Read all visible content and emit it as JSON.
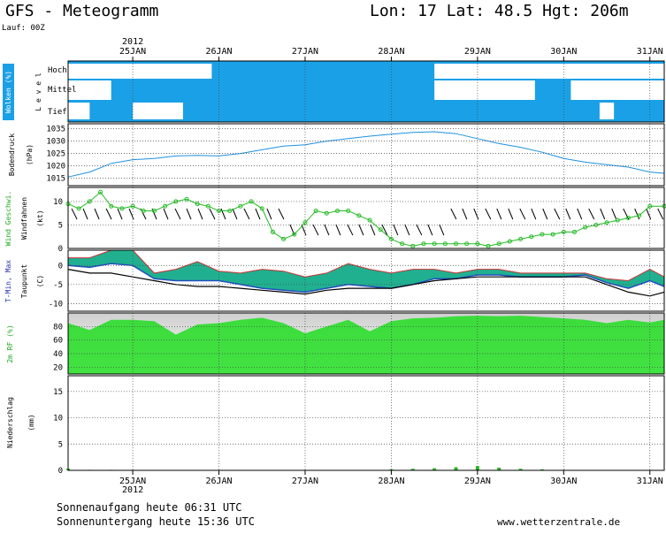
{
  "header": {
    "title": "GFS  - Meteogramm",
    "location": "Lon: 17 Lat: 48.5 Hgt: 206m",
    "run": "Lauf: 00Z"
  },
  "year_label": "2012",
  "date_labels": [
    "25JAN",
    "26JAN",
    "27JAN",
    "28JAN",
    "29JAN",
    "30JAN",
    "31JAN"
  ],
  "footer": {
    "sunrise": "Sonnenaufgang heute 06:31 UTC",
    "sunset": "Sonnenuntergang heute 15:36 UTC",
    "site": "www.wetterzentrale.de"
  },
  "colors": {
    "cloud_bg": "#1aa0e6",
    "pressure_line": "#1e90e0",
    "wind_line": "#22bb22",
    "humidity_fill": "#22dd22",
    "precip_bar": "#22bb22",
    "tmax_fill": "#20b090",
    "tmin_fill": "#2050c0",
    "temp_top": "#cc3333",
    "dewpoint": "#000000"
  },
  "chart_data": [
    {
      "type": "heatmap",
      "panel": "clouds",
      "ylabel": "Wolken (%)",
      "ylabel2": "Level",
      "level_labels": [
        "Hoch",
        "Mittel",
        "Tief"
      ],
      "x_range": [
        0,
        166
      ],
      "hoch": [
        [
          0,
          40
        ],
        [
          102,
          166
        ]
      ],
      "mittel": [
        [
          0,
          12
        ],
        [
          102,
          130
        ],
        [
          140,
          166
        ]
      ],
      "tief": [
        [
          0,
          6
        ],
        [
          18,
          32
        ],
        [
          148,
          152
        ]
      ]
    },
    {
      "type": "line",
      "panel": "pressure",
      "ylabel": "Bodendruck",
      "ylabel2": "(hPa)",
      "ylim": [
        1012,
        1037
      ],
      "yticks": [
        1015,
        1020,
        1025,
        1030,
        1035
      ],
      "x": [
        0,
        6,
        12,
        18,
        24,
        30,
        36,
        42,
        48,
        54,
        60,
        66,
        72,
        78,
        84,
        90,
        96,
        102,
        108,
        114,
        120,
        126,
        132,
        138,
        144,
        150,
        156,
        162,
        166
      ],
      "values": [
        1015.5,
        1017.5,
        1021,
        1022.5,
        1023,
        1024,
        1024.2,
        1024,
        1025,
        1026.5,
        1028,
        1028.5,
        1030,
        1031,
        1032,
        1032.8,
        1033.5,
        1033.8,
        1033,
        1031,
        1029,
        1027.5,
        1025.5,
        1023,
        1021.5,
        1020.5,
        1019.5,
        1017.5,
        1017
      ]
    },
    {
      "type": "line",
      "panel": "wind",
      "ylabel": "Wind Geschwi.",
      "ylabel2": "Windfahnen",
      "ylabel3": "(kt)",
      "ylim": [
        0,
        13
      ],
      "yticks": [
        0,
        5,
        10
      ],
      "x": [
        0,
        3,
        6,
        9,
        12,
        15,
        18,
        21,
        24,
        27,
        30,
        33,
        36,
        39,
        42,
        45,
        48,
        51,
        54,
        57,
        60,
        63,
        66,
        69,
        72,
        75,
        78,
        81,
        84,
        87,
        90,
        93,
        96,
        99,
        102,
        105,
        108,
        111,
        114,
        117,
        120,
        123,
        126,
        129,
        132,
        135,
        138,
        141,
        144,
        147,
        150,
        153,
        156,
        159,
        162,
        166
      ],
      "values": [
        9.5,
        8.5,
        10,
        12,
        9,
        8.5,
        9,
        8,
        8,
        9,
        10,
        10.5,
        9.5,
        9,
        8,
        8,
        9,
        10,
        8.5,
        3.5,
        2,
        3,
        5.5,
        8,
        7.5,
        8,
        8,
        7,
        6,
        4,
        2,
        1,
        0.5,
        1,
        1,
        1,
        1,
        1,
        1,
        0.5,
        1,
        1.5,
        2,
        2.5,
        3,
        3,
        3.5,
        3.5,
        4.5,
        5,
        5.5,
        6,
        6.5,
        7,
        9,
        9
      ]
    },
    {
      "type": "area",
      "panel": "temperature",
      "ylabel": "T-Min, Max",
      "ylabel2": "Taupunkt",
      "ylabel3": "(C)",
      "ylim": [
        -12,
        4
      ],
      "yticks": [
        -10,
        -5,
        0
      ],
      "x": [
        0,
        6,
        12,
        18,
        24,
        30,
        36,
        42,
        48,
        54,
        60,
        66,
        72,
        78,
        84,
        90,
        96,
        102,
        108,
        114,
        120,
        126,
        132,
        138,
        144,
        150,
        156,
        162,
        166
      ],
      "series": [
        {
          "name": "T-Max",
          "values": [
            2,
            2,
            4,
            4,
            -2,
            -1,
            1,
            -1.5,
            -2,
            -1,
            -1.5,
            -3,
            -2,
            0.5,
            -1,
            -2,
            -1,
            -1,
            -2,
            -1,
            -1,
            -2,
            -2,
            -2,
            -2,
            -3.5,
            -4,
            -1,
            -3
          ]
        },
        {
          "name": "T-Min",
          "values": [
            0,
            -0.5,
            0.5,
            0,
            -3.5,
            -4,
            -4,
            -4,
            -5,
            -6,
            -6.5,
            -7,
            -6,
            -5,
            -5.5,
            -6,
            -5,
            -3.5,
            -3.5,
            -2.5,
            -2.5,
            -3,
            -3,
            -3,
            -2.5,
            -4.5,
            -6,
            -4,
            -5.5
          ]
        },
        {
          "name": "Taupunkt",
          "values": [
            -1,
            -2,
            -2,
            -3,
            -4,
            -5,
            -5.5,
            -5.5,
            -6,
            -6.5,
            -7,
            -7.5,
            -6.5,
            -6,
            -6,
            -6,
            -5,
            -4,
            -3.5,
            -3,
            -3,
            -3,
            -3,
            -3,
            -3,
            -5,
            -7,
            -8,
            -7
          ]
        }
      ]
    },
    {
      "type": "area",
      "panel": "humidity",
      "ylabel": "2m RF (%)",
      "ylim": [
        10,
        100
      ],
      "yticks": [
        20,
        40,
        60,
        80
      ],
      "x": [
        0,
        6,
        12,
        18,
        24,
        30,
        36,
        42,
        48,
        54,
        60,
        66,
        72,
        78,
        84,
        90,
        96,
        102,
        108,
        114,
        120,
        126,
        132,
        138,
        144,
        150,
        156,
        162,
        166
      ],
      "values": [
        85,
        75,
        90,
        90,
        88,
        68,
        83,
        85,
        90,
        93,
        85,
        70,
        80,
        90,
        73,
        88,
        92,
        93,
        95,
        96,
        95,
        96,
        94,
        92,
        90,
        85,
        90,
        86,
        90
      ]
    },
    {
      "type": "bar",
      "panel": "precipitation",
      "ylabel": "Niederschlag",
      "ylabel2": "(mm)",
      "ylim": [
        0,
        18
      ],
      "yticks": [
        0,
        5,
        10,
        15
      ],
      "x": [
        0,
        6,
        12,
        18,
        24,
        30,
        36,
        42,
        48,
        54,
        60,
        66,
        72,
        78,
        84,
        90,
        96,
        102,
        108,
        114,
        120,
        126,
        132,
        138,
        144,
        150,
        156,
        162,
        166
      ],
      "values": [
        0.3,
        0.1,
        0.1,
        0.1,
        0,
        0,
        0,
        0,
        0,
        0,
        0,
        0,
        0,
        0,
        0,
        0.2,
        0.3,
        0.4,
        0.6,
        0.8,
        0.5,
        0.3,
        0.2,
        0.1,
        0,
        0,
        0,
        0,
        0
      ]
    }
  ]
}
